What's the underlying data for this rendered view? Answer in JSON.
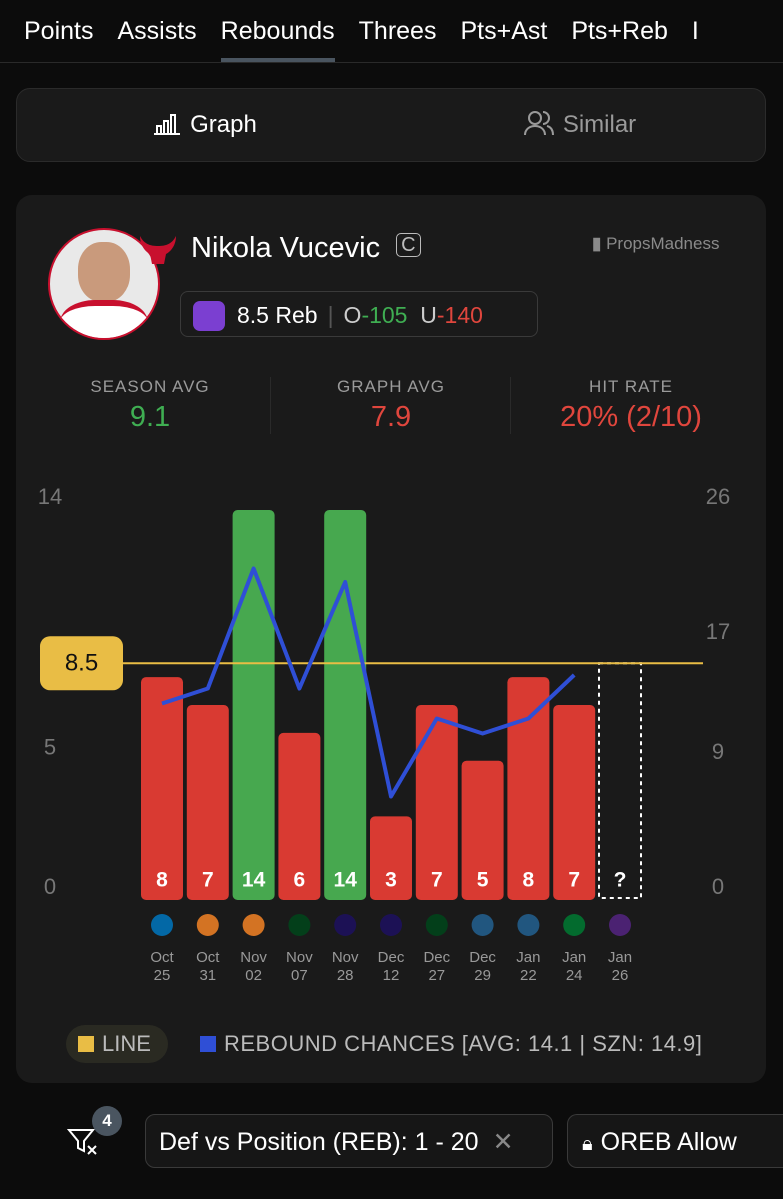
{
  "tabs": [
    "Points",
    "Assists",
    "Rebounds",
    "Threes",
    "Pts+Ast",
    "Pts+Reb",
    "I"
  ],
  "active_tab": 2,
  "toggle": [
    "Graph",
    "Similar"
  ],
  "player": {
    "name": "Nikola Vucevic",
    "position": "C",
    "brand": "PropsMadness",
    "line_text": "8.5 Reb",
    "over_label": "O",
    "over_odds": "-105",
    "under_label": "U",
    "under_odds": "-140"
  },
  "stats": [
    {
      "label": "SEASON AVG",
      "value": "9.1",
      "color": "#3fae52"
    },
    {
      "label": "GRAPH AVG",
      "value": "7.9",
      "color": "#e0463d"
    },
    {
      "label": "HIT RATE",
      "value": "20% (2/10)",
      "color": "#e0463d"
    }
  ],
  "chart_data": {
    "type": "bar",
    "categories": [
      "Oct 25",
      "Oct 31",
      "Nov 02",
      "Nov 07",
      "Nov 28",
      "Dec 12",
      "Dec 27",
      "Dec 29",
      "Jan 22",
      "Jan 24",
      "Jan 26"
    ],
    "values": [
      8,
      7,
      14,
      6,
      14,
      3,
      7,
      5,
      8,
      7,
      null
    ],
    "value_labels": [
      "8",
      "7",
      "14",
      "6",
      "14",
      "3",
      "7",
      "5",
      "8",
      "7",
      "?"
    ],
    "colors": [
      "#d93a32",
      "#d93a32",
      "#47a84f",
      "#d93a32",
      "#47a84f",
      "#d93a32",
      "#d93a32",
      "#d93a32",
      "#d93a32",
      "#d93a32",
      null
    ],
    "line": 8.5,
    "line_color": "#e9bd45",
    "ylim": [
      0,
      14
    ],
    "yticks": [
      0,
      5,
      14
    ],
    "y2lim": [
      0,
      26
    ],
    "y2ticks": [
      0,
      9,
      17,
      26
    ],
    "series": [
      {
        "name": "REBOUND CHANCES [AVG: 14.1 | SZN: 14.9]",
        "color": "#2f4fd6",
        "axis": "y2",
        "values": [
          13.1,
          14.1,
          22.1,
          14.1,
          21.2,
          6.9,
          12.1,
          11.1,
          12.1,
          15.0,
          null
        ]
      }
    ],
    "line_legend": "LINE"
  },
  "filters": {
    "count": "4",
    "chips": [
      "Def vs Position (REB): 1 - 20",
      "OREB Allow"
    ]
  }
}
